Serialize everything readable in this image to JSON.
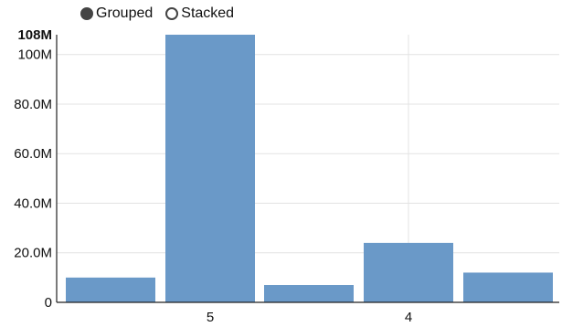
{
  "controls": {
    "grouped_label": "Grouped",
    "stacked_label": "Stacked",
    "selected": "Grouped"
  },
  "chart_data": {
    "type": "bar",
    "mode": "grouped",
    "bar_color": "#6a99c8",
    "grid": true,
    "ylim": [
      0,
      108000000
    ],
    "y_max_label": "108M",
    "yticks": [
      {
        "value": 0,
        "label": "0"
      },
      {
        "value": 20000000,
        "label": "20.0M"
      },
      {
        "value": 40000000,
        "label": "40.0M"
      },
      {
        "value": 60000000,
        "label": "60.0M"
      },
      {
        "value": 80000000,
        "label": "80.0M"
      },
      {
        "value": 100000000,
        "label": "100M"
      }
    ],
    "categories": [
      "5",
      "4"
    ],
    "series": [
      {
        "values": [
          10000000,
          24000000
        ]
      },
      {
        "values": [
          108000000,
          12000000
        ]
      },
      {
        "values": [
          7000000,
          null
        ]
      }
    ],
    "bars_in_order": [
      {
        "group": "5",
        "value": 10000000
      },
      {
        "group": "5",
        "value": 108000000
      },
      {
        "group": "5",
        "value": 7000000
      },
      {
        "group": "4",
        "value": 24000000
      },
      {
        "group": "4",
        "value": 12000000
      }
    ]
  }
}
